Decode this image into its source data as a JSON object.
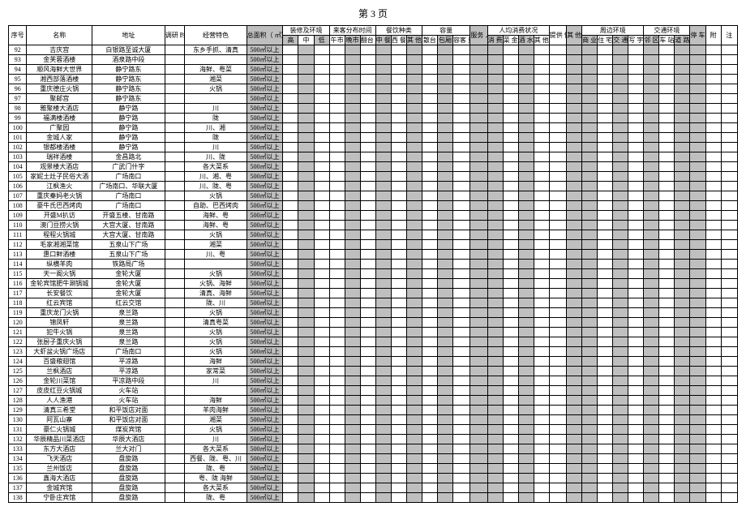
{
  "page_title": "第 3 页",
  "headers": {
    "seq": "序号",
    "name": "名称",
    "addr": "地址",
    "survey_time": "调研\n时间",
    "biz": "经营特色",
    "area": "总面积（\n㎡）",
    "deco_env": "装修及环境",
    "deco_hi": "高",
    "deco_mid": "中",
    "deco_lo": "低",
    "guest_time": "来客分布时间",
    "g_noon": "午市",
    "g_eve": "晚市",
    "g_turn": "翻台\n率",
    "food_type": "餐饮种类",
    "f_cn": "中\n餐",
    "f_west": "西\n餐",
    "f_other": "其\n他",
    "capacity": "容量",
    "cap_san": "散台",
    "cap_bao": "包厢",
    "cap_vol": "容客\n量",
    "staff": "服务\n人数",
    "spend": "人均消费状况",
    "s_level": "消\n费\n档\n次",
    "s_dish": "菜\n金\n价\n格",
    "s_wine": "酒\n水\n价\n格",
    "s_other": "其\n他\n消\n费",
    "supply": "提供\n性服\n务",
    "supply_other": "其\n他",
    "around": "周边环境",
    "a_shop": "商\n业\n区",
    "a_res": "住\n宅\n区",
    "a_tran": "交\n通\n枢\n纽",
    "a_road": "写\n字\n楼",
    "traffic": "交通环境",
    "t_near": "邻\n区",
    "t_sta": "车\n站",
    "t_road": "道\n路\n边",
    "park": "停\n车\n场",
    "attach": "附",
    "note": "注"
  },
  "area_text": "500㎡以上",
  "rows": [
    {
      "n": "92",
      "name": "吉庆宫",
      "addr": "白银路至诚大厦",
      "biz": "东乡手抓、清真"
    },
    {
      "n": "93",
      "name": "金芙蓉酒楼",
      "addr": "酒泉路中段",
      "biz": ""
    },
    {
      "n": "94",
      "name": "顺风海鲜大世界",
      "addr": "静宁路东",
      "biz": "海鲜、粤菜"
    },
    {
      "n": "95",
      "name": "湘西部落酒楼",
      "addr": "静宁路东",
      "biz": "湘菜"
    },
    {
      "n": "96",
      "name": "重庆德庄火锅",
      "addr": "静宁路东",
      "biz": "火锅"
    },
    {
      "n": "97",
      "name": "聚邮宫",
      "addr": "静宁路东",
      "biz": ""
    },
    {
      "n": "98",
      "name": "雅聚楼大酒店",
      "addr": "静宁路",
      "biz": "川"
    },
    {
      "n": "99",
      "name": "福满楼酒楼",
      "addr": "静宁路",
      "biz": "陇"
    },
    {
      "n": "100",
      "name": "广聚园",
      "addr": "静宁路",
      "biz": "川、湘"
    },
    {
      "n": "101",
      "name": "金城人家",
      "addr": "静宁路",
      "biz": "陇"
    },
    {
      "n": "102",
      "name": "银都楼酒楼",
      "addr": "静宁路",
      "biz": "川"
    },
    {
      "n": "103",
      "name": "瑞祥酒楼",
      "addr": "金昌路北",
      "biz": "川、陇"
    },
    {
      "n": "104",
      "name": "观景楼大酒店",
      "addr": "广武门什字",
      "biz": "各大菜系"
    },
    {
      "n": "105",
      "name": "家妮土灶子民俗大酒",
      "addr": "广场南口",
      "biz": "川、湘、粤"
    },
    {
      "n": "106",
      "name": "江枫渔火",
      "addr": "广场南口、华联大厦",
      "biz": "川、陇、粤"
    },
    {
      "n": "107",
      "name": "重庆秦妈老火锅",
      "addr": "广场南口",
      "biz": "火锅"
    },
    {
      "n": "108",
      "name": "豪牛氏巴西烤肉",
      "addr": "广场南口",
      "biz": "自助、巴西烤肉"
    },
    {
      "n": "109",
      "name": "开盛M扒访",
      "addr": "开盛五楼、甘南路",
      "biz": "海鲜、粤"
    },
    {
      "n": "110",
      "name": "澳门豆捞火锅",
      "addr": "大宫大厦、甘南路",
      "biz": "海鲜、粤"
    },
    {
      "n": "111",
      "name": "程程火锅城",
      "addr": "大宫大厦、甘南路",
      "biz": "火锅"
    },
    {
      "n": "112",
      "name": "毛家湘湘菜馆",
      "addr": "五泉山下广场",
      "biz": "湘菜"
    },
    {
      "n": "113",
      "name": "惠口鲜酒楼",
      "addr": "五泉山下广场",
      "biz": "川、粤"
    },
    {
      "n": "114",
      "name": "纵横羊肉",
      "addr": "铁路局广场",
      "biz": ""
    },
    {
      "n": "115",
      "name": "天一阁火锅",
      "addr": "金轮大厦",
      "biz": "火锅"
    },
    {
      "n": "116",
      "name": "金轮宾馆肥牛涮锅城",
      "addr": "金轮大厦",
      "biz": "火锅、海鲜"
    },
    {
      "n": "117",
      "name": "长安餐饮",
      "addr": "金轮大厦",
      "biz": "清真、海鲜"
    },
    {
      "n": "118",
      "name": "红云宾馆",
      "addr": "红云交馆",
      "biz": "陇、川"
    },
    {
      "n": "119",
      "name": "重庆龙门火锅",
      "addr": "泉兰路",
      "biz": "火锅"
    },
    {
      "n": "120",
      "name": "锦凤轩",
      "addr": "泉兰路",
      "biz": "清真粤菜"
    },
    {
      "n": "121",
      "name": "犯牛火锅",
      "addr": "泉兰路",
      "biz": "火锅"
    },
    {
      "n": "122",
      "name": "张厨子重庆火锅",
      "addr": "泉兰路",
      "biz": "火锅"
    },
    {
      "n": "123",
      "name": "大虾盆火锅广场店",
      "addr": "广场南口",
      "biz": "火锅"
    },
    {
      "n": "124",
      "name": "百盛粮翅馆",
      "addr": "平凉路",
      "biz": "海鲜"
    },
    {
      "n": "125",
      "name": "兰枫酒店",
      "addr": "平凉路",
      "biz": "家常菜"
    },
    {
      "n": "126",
      "name": "金轮川菜馆",
      "addr": "平凉路中段",
      "biz": "川"
    },
    {
      "n": "127",
      "name": "皮皮红豆火锅城",
      "addr": "火车站",
      "biz": ""
    },
    {
      "n": "128",
      "name": "人人渔港",
      "addr": "火车站",
      "biz": "海鲜"
    },
    {
      "n": "129",
      "name": "清真三希堂",
      "addr": "和平饭店对面",
      "biz": "羊肉海鲜"
    },
    {
      "n": "130",
      "name": "阿瓦山寨",
      "addr": "和平饭店对面",
      "biz": "湘菜"
    },
    {
      "n": "131",
      "name": "豪仁火锅城",
      "addr": "煤炭宾馆",
      "biz": "火锅"
    },
    {
      "n": "132",
      "name": "华辰精品川菜酒店",
      "addr": "华辰大酒店",
      "biz": "川"
    },
    {
      "n": "133",
      "name": "东方大酒店",
      "addr": "兰大对门",
      "biz": "各大菜系"
    },
    {
      "n": "134",
      "name": "飞天酒店",
      "addr": "盘旋路",
      "biz": "西餐、陇、粤、川"
    },
    {
      "n": "135",
      "name": "兰州饭店",
      "addr": "盘旋路",
      "biz": "陇、粤"
    },
    {
      "n": "136",
      "name": "鑫海大酒店",
      "addr": "盘旋路",
      "biz": "粤、陇 海鲜"
    },
    {
      "n": "137",
      "name": "金城宾馆",
      "addr": "盘旋路",
      "biz": "各大菜系"
    },
    {
      "n": "138",
      "name": "宁卧庄宾馆",
      "addr": "盘旋路",
      "biz": "陇、粤"
    }
  ]
}
